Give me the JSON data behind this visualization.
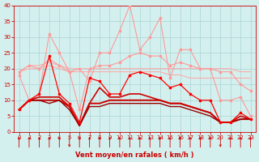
{
  "x": [
    0,
    1,
    2,
    3,
    4,
    5,
    6,
    7,
    8,
    9,
    10,
    11,
    12,
    13,
    14,
    15,
    16,
    17,
    18,
    19,
    20,
    21,
    22,
    23
  ],
  "series": [
    {
      "y": [
        7,
        10,
        12,
        24,
        12,
        9,
        3,
        17,
        16,
        12,
        12,
        18,
        19,
        18,
        17,
        14,
        15,
        12,
        10,
        10,
        3,
        3,
        6,
        4
      ],
      "color": "#ff0000",
      "lw": 0.9,
      "marker": "s",
      "ms": 1.8,
      "zorder": 5
    },
    {
      "y": [
        7,
        10,
        11,
        11,
        11,
        8,
        2,
        9,
        14,
        11,
        11,
        12,
        12,
        11,
        10,
        9,
        9,
        8,
        7,
        6,
        3,
        3,
        5,
        4
      ],
      "color": "#cc0000",
      "lw": 1.2,
      "marker": null,
      "ms": 0,
      "zorder": 4
    },
    {
      "y": [
        7,
        10,
        10,
        10,
        10,
        8,
        2,
        9,
        9,
        10,
        10,
        10,
        10,
        10,
        10,
        9,
        9,
        8,
        7,
        6,
        3,
        3,
        4,
        4
      ],
      "color": "#cc0000",
      "lw": 1.4,
      "marker": null,
      "ms": 0,
      "zorder": 4
    },
    {
      "y": [
        7,
        10,
        10,
        9,
        10,
        7,
        2,
        8,
        8,
        9,
        9,
        9,
        9,
        9,
        9,
        8,
        8,
        7,
        6,
        5,
        3,
        3,
        4,
        4
      ],
      "color": "#990000",
      "lw": 1.0,
      "marker": null,
      "ms": 0,
      "zorder": 4
    },
    {
      "y": [
        19,
        21,
        20,
        23,
        21,
        19,
        7,
        20,
        21,
        21,
        22,
        24,
        25,
        24,
        24,
        21,
        22,
        21,
        20,
        20,
        19,
        19,
        15,
        13
      ],
      "color": "#ff9999",
      "lw": 0.8,
      "marker": "s",
      "ms": 1.5,
      "zorder": 3
    },
    {
      "y": [
        18,
        10,
        12,
        31,
        25,
        19,
        20,
        16,
        25,
        25,
        32,
        40,
        26,
        30,
        36,
        17,
        26,
        26,
        20,
        20,
        10,
        10,
        11,
        5
      ],
      "color": "#ff9999",
      "lw": 0.8,
      "marker": "s",
      "ms": 1.5,
      "zorder": 3
    },
    {
      "y": [
        19,
        21,
        21,
        22,
        21,
        20,
        20,
        20,
        20,
        20,
        20,
        20,
        20,
        20,
        20,
        20,
        20,
        20,
        20,
        20,
        20,
        20,
        19,
        19
      ],
      "color": "#ffaaaa",
      "lw": 0.8,
      "marker": null,
      "ms": 0,
      "zorder": 2
    },
    {
      "y": [
        19,
        20,
        20,
        21,
        20,
        19,
        19,
        19,
        19,
        19,
        19,
        19,
        19,
        19,
        19,
        18,
        18,
        17,
        17,
        17,
        17,
        17,
        17,
        17
      ],
      "color": "#ffaaaa",
      "lw": 0.8,
      "marker": null,
      "ms": 0,
      "zorder": 2
    }
  ],
  "xlabel": "Vent moyen/en rafales ( km/h )",
  "xlim": [
    -0.5,
    23.5
  ],
  "ylim": [
    0,
    40
  ],
  "yticks": [
    0,
    5,
    10,
    15,
    20,
    25,
    30,
    35,
    40
  ],
  "xticks": [
    0,
    1,
    2,
    3,
    4,
    5,
    6,
    7,
    8,
    9,
    10,
    11,
    12,
    13,
    14,
    15,
    16,
    17,
    18,
    19,
    20,
    21,
    22,
    23
  ],
  "bg_color": "#d4f0ee",
  "grid_color": "#b0d8d8",
  "tick_color": "#cc0000",
  "label_color": "#cc0000",
  "arrow_up_indices": [
    0,
    1,
    2,
    3,
    4,
    6,
    7,
    8,
    9,
    10,
    11,
    12,
    13,
    14,
    15,
    16,
    17,
    18,
    19,
    21,
    22,
    23
  ],
  "arrow_down_indices": [
    5,
    20
  ]
}
